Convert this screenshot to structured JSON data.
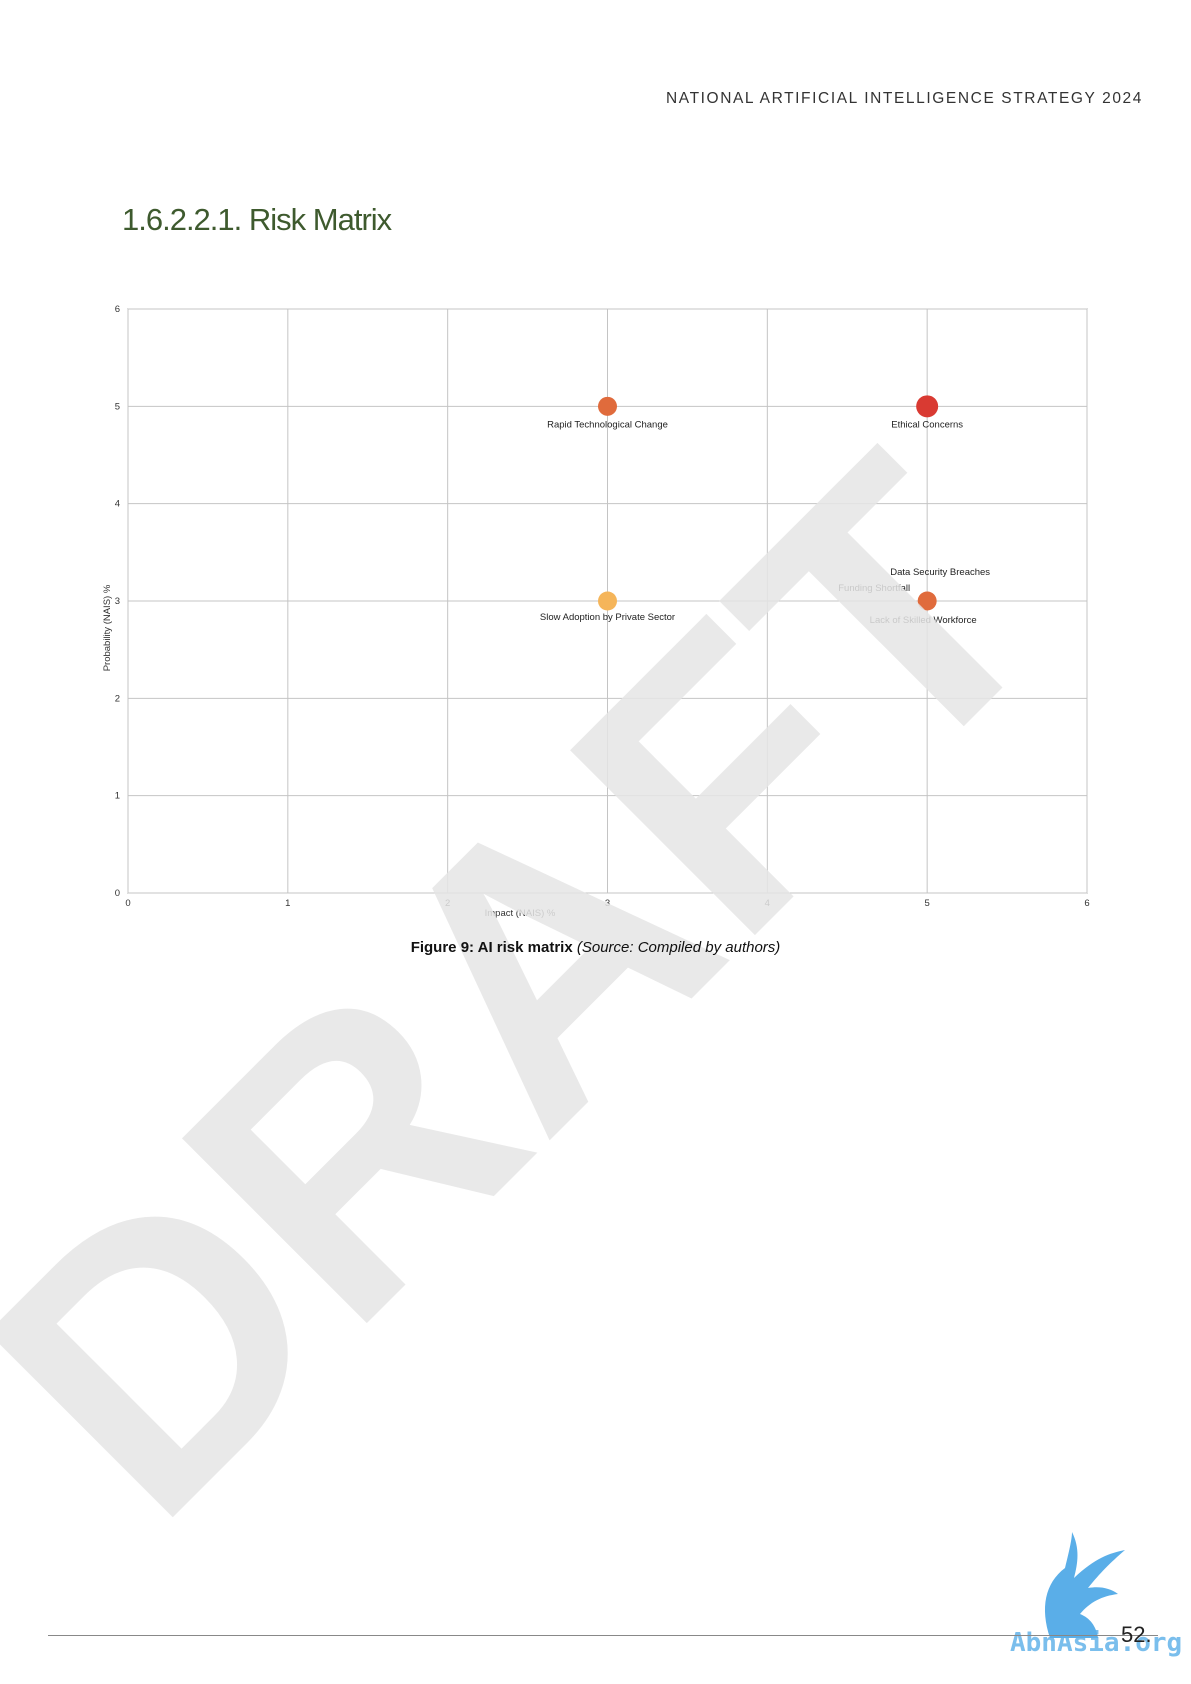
{
  "header": {
    "running_title": "NATIONAL ARTIFICIAL INTELLIGENCE STRATEGY 2024"
  },
  "section": {
    "title": "1.6.2.2.1. Risk Matrix"
  },
  "chart_data": {
    "type": "scatter",
    "title": "",
    "xlabel": "Impact (NAIS) %",
    "ylabel": "Probability (NAIS) %",
    "xlim": [
      0,
      6
    ],
    "ylim": [
      0,
      6
    ],
    "x_ticks": [
      "0",
      "1",
      "2",
      "3",
      "4",
      "5",
      "6"
    ],
    "y_ticks": [
      "0",
      "1",
      "2",
      "3",
      "4",
      "5",
      "6"
    ],
    "grid": true,
    "points": [
      {
        "label": "Rapid Technological Change",
        "x": 3,
        "y": 5,
        "color": "#e06b3c"
      },
      {
        "label": "Ethical Concerns",
        "x": 5,
        "y": 5,
        "color": "#d93a32"
      },
      {
        "label": "Slow Adoption by Private Sector",
        "x": 3,
        "y": 3,
        "color": "#f5b55a"
      },
      {
        "label": "Data Security Breaches",
        "x": 5,
        "y": 3,
        "color": "#e06b3c"
      },
      {
        "label": "Funding Shortfall",
        "x": 5,
        "y": 3,
        "color": "#e06b3c"
      },
      {
        "label": "Lack of Skilled Workforce",
        "x": 5,
        "y": 3,
        "color": "#e06b3c"
      }
    ]
  },
  "caption": {
    "label": "Figure 9: AI risk matrix",
    "source": "(Source:  Compiled by authors)"
  },
  "watermark": {
    "text": "DRAFT",
    "color": "#e6e6e6"
  },
  "logo": {
    "text": "AbnAsia.org",
    "icon": "eagle-icon",
    "color": "#5aaee8"
  },
  "footer": {
    "page_number": "52."
  }
}
